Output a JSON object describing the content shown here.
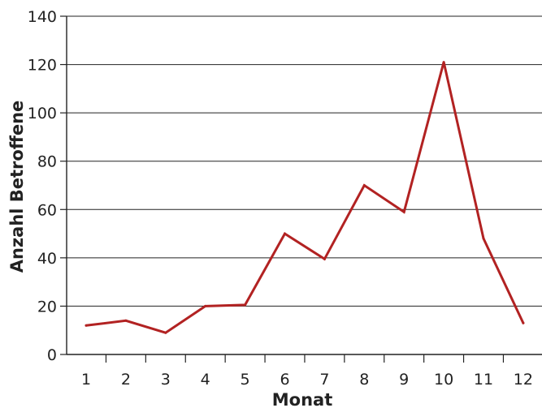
{
  "chart_data": {
    "type": "line",
    "title": "",
    "xlabel": "Monat",
    "ylabel": "Anzahl Betroffene",
    "categories": [
      "1",
      "2",
      "3",
      "4",
      "5",
      "6",
      "7",
      "8",
      "9",
      "10",
      "11",
      "12"
    ],
    "series": [
      {
        "values": [
          12,
          14,
          9,
          20,
          20.5,
          50,
          39.5,
          70,
          59,
          121,
          48,
          13
        ]
      }
    ],
    "yticks": [
      "0",
      "20",
      "40",
      "60",
      "80",
      "100",
      "120",
      "140"
    ],
    "ylim": [
      0,
      140
    ],
    "grid": "horizontal",
    "legend": "none",
    "colors": {
      "line": "#b22222",
      "grid": "#222222",
      "text": "#222222"
    }
  }
}
